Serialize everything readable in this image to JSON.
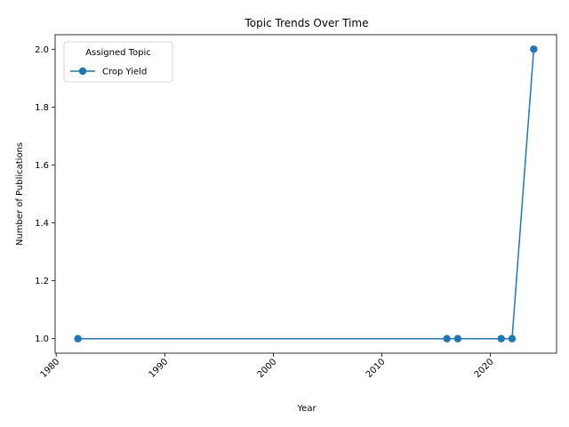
{
  "chart_data": {
    "type": "line",
    "title": "Topic Trends Over Time",
    "xlabel": "Year",
    "ylabel": "Number of Publications",
    "xlim": [
      1979.9,
      2026.1
    ],
    "ylim": [
      0.95,
      2.05
    ],
    "xticks": [
      1980,
      1990,
      2000,
      2010,
      2020
    ],
    "xtick_labels": [
      "1980",
      "1990",
      "2000",
      "2010",
      "2020"
    ],
    "xtick_rotation": 45,
    "yticks": [
      1.0,
      1.2,
      1.4,
      1.6,
      1.8,
      2.0
    ],
    "ytick_labels": [
      "1.0",
      "1.2",
      "1.4",
      "1.6",
      "1.8",
      "2.0"
    ],
    "grid": false,
    "legend": {
      "title": "Assigned Topic",
      "placement": "upper-left"
    },
    "series": [
      {
        "name": "Crop Yield",
        "color": "#1f77b4",
        "marker": "circle",
        "x": [
          1982,
          2016,
          2017,
          2021,
          2022,
          2024
        ],
        "y": [
          1,
          1,
          1,
          1,
          1,
          2
        ]
      }
    ]
  }
}
